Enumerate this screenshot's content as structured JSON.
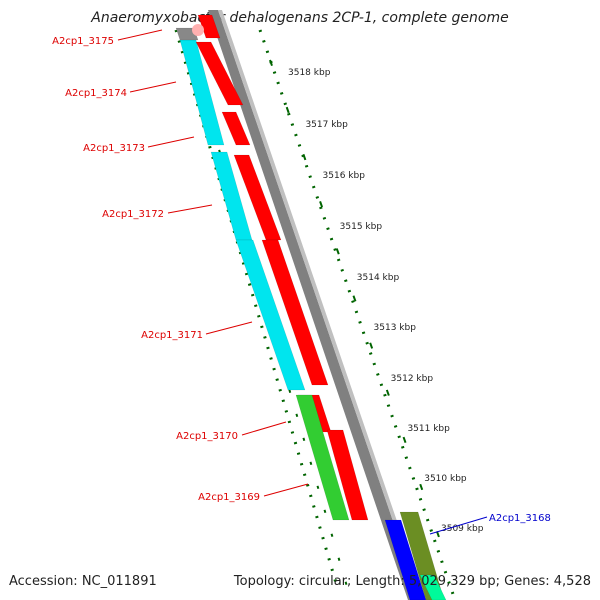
{
  "title": "Anaeromyxobacter dehalogenans 2CP-1, complete genome",
  "footer": {
    "accession": "Accession: NC_011891",
    "topology": "Topology: circular; Length: 5,029,329 bp; Genes: 4,528"
  },
  "colors": {
    "cds_forward": "#ff0000",
    "gene_forward": "#00e5ee",
    "cds_reverse": "#0000ff",
    "gene_reverse": "#6b8e23",
    "rna_orange": "#ff8c00",
    "gene_green": "#32cd32",
    "backbone": "#808080",
    "ticks": "#006400",
    "label_forward": "#dd0000",
    "label_reverse": "#0000cc"
  },
  "kbp_labels": [
    "3518 kbp",
    "3517 kbp",
    "3516 kbp",
    "3515 kbp",
    "3514 kbp",
    "3513 kbp",
    "3512 kbp",
    "3511 kbp",
    "3510 kbp",
    "3509 kbp"
  ],
  "gene_labels": [
    {
      "name": "A2cp1_3175",
      "strand": "forward"
    },
    {
      "name": "A2cp1_3174",
      "strand": "forward"
    },
    {
      "name": "A2cp1_3173",
      "strand": "forward"
    },
    {
      "name": "A2cp1_3172",
      "strand": "forward"
    },
    {
      "name": "A2cp1_3171",
      "strand": "forward"
    },
    {
      "name": "A2cp1_3170",
      "strand": "forward"
    },
    {
      "name": "A2cp1_3169",
      "strand": "forward"
    },
    {
      "name": "A2cp1_3168",
      "strand": "reverse"
    }
  ]
}
